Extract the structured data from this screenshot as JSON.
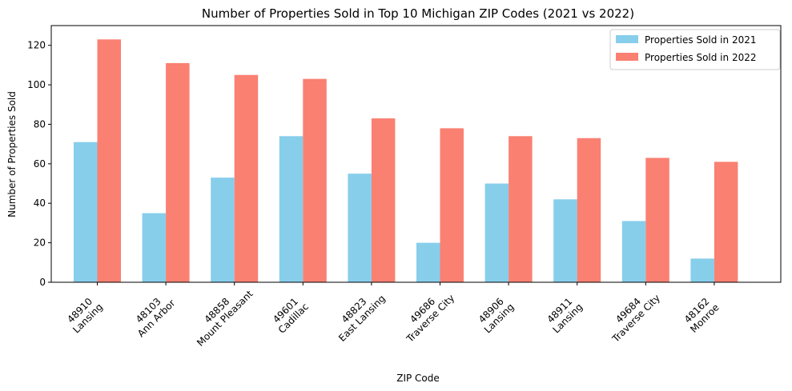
{
  "chart_data": {
    "type": "bar",
    "title": "Number of Properties Sold in Top 10 Michigan ZIP Codes (2021 vs 2022)",
    "xlabel": "ZIP Code",
    "ylabel": "Number of Properties Sold",
    "ylim": [
      0,
      130
    ],
    "yticks": [
      0,
      20,
      40,
      60,
      80,
      100,
      120
    ],
    "grid": false,
    "legend_position": "top-right",
    "categories": [
      "48910\nLansing",
      "48103\nAnn Arbor",
      "48858\nMount Pleasant",
      "49601\nCadillac",
      "48823\nEast Lansing",
      "49686\nTraverse City",
      "48906\nLansing",
      "48911\nLansing",
      "49684\nTraverse City",
      "48162\nMonroe"
    ],
    "series": [
      {
        "name": "Properties Sold in 2021",
        "color": "#87ceeb",
        "values": [
          71,
          35,
          53,
          74,
          55,
          20,
          50,
          42,
          31,
          12
        ]
      },
      {
        "name": "Properties Sold in 2022",
        "color": "#fa8072",
        "values": [
          123,
          111,
          105,
          103,
          83,
          78,
          74,
          73,
          63,
          61
        ]
      }
    ]
  }
}
